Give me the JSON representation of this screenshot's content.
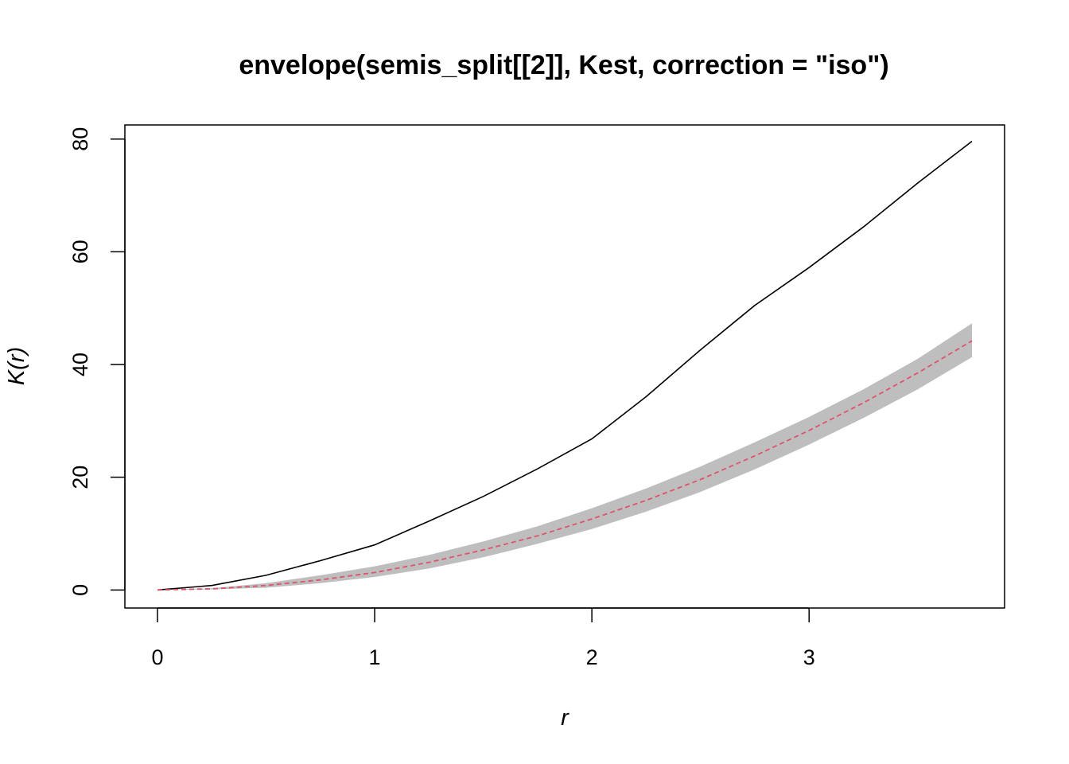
{
  "chart_data": {
    "type": "line",
    "title": "envelope(semis_split[[2]], Kest, correction = \"iso\")",
    "xlabel": "r",
    "ylabel": "K(r)",
    "xlim": [
      -0.15,
      3.9
    ],
    "ylim": [
      -3.2,
      82.5
    ],
    "xticks": [
      "0",
      "1",
      "2",
      "3"
    ],
    "yticks": [
      "0",
      "20",
      "40",
      "60",
      "80"
    ],
    "grid": false,
    "legend": "none",
    "series": [
      {
        "style": "solid",
        "color": "#000000",
        "x": [
          0,
          0.25,
          0.5,
          0.75,
          1.0,
          1.25,
          1.5,
          1.75,
          2.0,
          2.25,
          2.5,
          2.75,
          3.0,
          3.25,
          3.5,
          3.75
        ],
        "y": [
          0,
          0.8,
          2.6,
          5.2,
          8.0,
          12.2,
          16.6,
          21.5,
          26.8,
          34.3,
          42.6,
          50.5,
          57.2,
          64.4,
          72.2,
          79.6
        ]
      },
      {
        "style": "dashed",
        "color": "#DF536B",
        "x": [
          0,
          0.25,
          0.5,
          0.75,
          1.0,
          1.25,
          1.5,
          1.75,
          2.0,
          2.25,
          2.5,
          2.75,
          3.0,
          3.25,
          3.5,
          3.75
        ],
        "y": [
          0,
          0.2,
          0.8,
          1.8,
          3.1,
          4.9,
          7.1,
          9.6,
          12.6,
          15.9,
          19.6,
          23.8,
          28.3,
          33.2,
          38.5,
          44.2
        ]
      },
      {
        "style": "band",
        "color": "#BEBEBE",
        "x": [
          0,
          0.25,
          0.5,
          0.75,
          1.0,
          1.25,
          1.5,
          1.75,
          2.0,
          2.25,
          2.5,
          2.75,
          3.0,
          3.25,
          3.5,
          3.75
        ],
        "lower": [
          0,
          0.1,
          0.4,
          1.2,
          2.3,
          3.8,
          5.8,
          8.2,
          10.8,
          13.9,
          17.4,
          21.4,
          25.8,
          30.5,
          35.6,
          41.3
        ],
        "upper": [
          0,
          0.3,
          1.2,
          2.6,
          4.2,
          6.2,
          8.6,
          11.3,
          14.5,
          18.0,
          21.9,
          26.2,
          30.7,
          35.6,
          41.0,
          47.3
        ]
      }
    ]
  }
}
